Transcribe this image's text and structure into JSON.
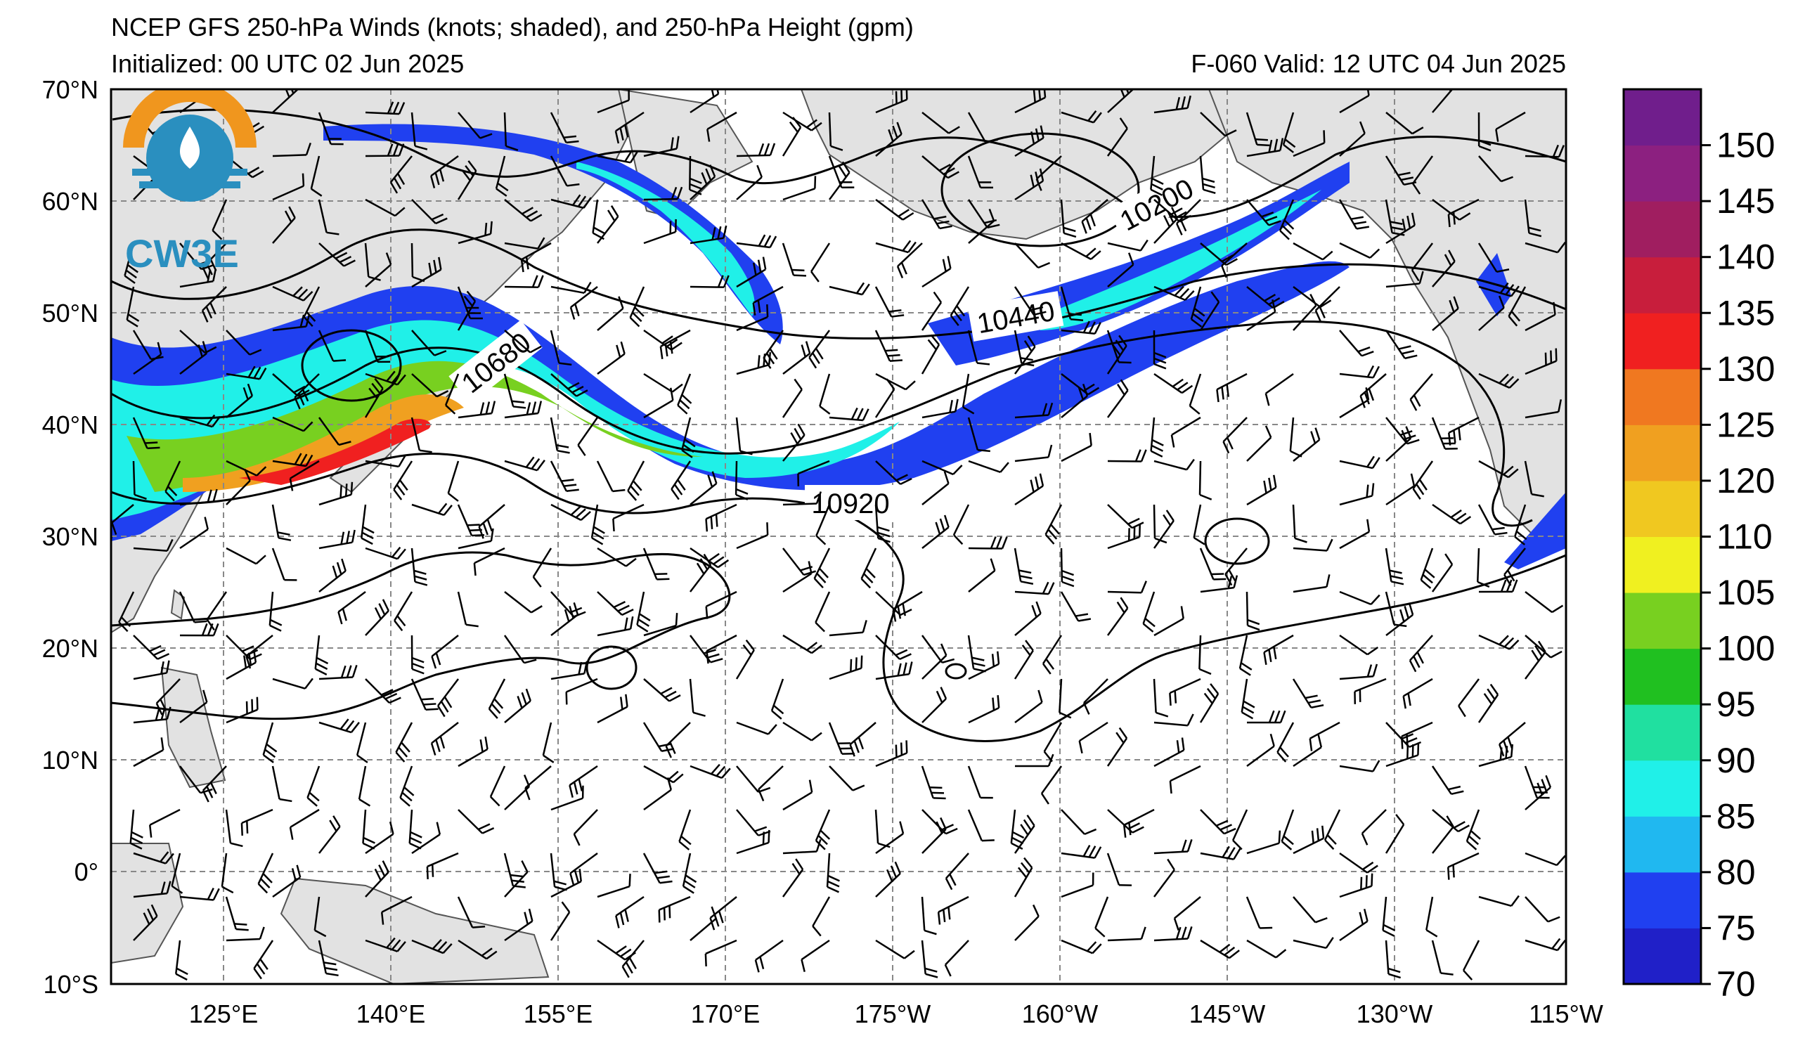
{
  "title": "NCEP GFS 250-hPa Winds (knots; shaded), and 250-hPa Height (gpm)",
  "initialized": "Initialized: 00 UTC 02 Jun 2025",
  "valid": "F-060  Valid: 12 UTC 04 Jun 2025",
  "logo_text": "CW3E",
  "lat_labels": [
    "70°N",
    "60°N",
    "50°N",
    "40°N",
    "30°N",
    "20°N",
    "10°N",
    "0°",
    "10°S"
  ],
  "lon_labels": [
    "125°E",
    "140°E",
    "155°E",
    "170°E",
    "175°W",
    "160°W",
    "145°W",
    "130°W",
    "115°W"
  ],
  "contour_labels": [
    "10200",
    "10440",
    "10680",
    "10920"
  ],
  "colorbar": {
    "tick_labels": [
      "70",
      "75",
      "80",
      "85",
      "90",
      "95",
      "100",
      "105",
      "110",
      "120",
      "125",
      "130",
      "135",
      "140",
      "145",
      "150"
    ],
    "colors": [
      "#2020c8",
      "#2040f0",
      "#20b8f0",
      "#20f0e8",
      "#20e0a0",
      "#20c020",
      "#78d020",
      "#f0f020",
      "#f0c820",
      "#f0a020",
      "#f07820",
      "#f02020",
      "#c81e3c",
      "#a01e60",
      "#8c2080",
      "#701e8c"
    ]
  },
  "colors": {
    "land": "#e2e2e2",
    "ocean": "#ffffff",
    "grid": "#888888",
    "logo_orange": "#f0961e",
    "logo_blue": "#2a8fbf"
  }
}
